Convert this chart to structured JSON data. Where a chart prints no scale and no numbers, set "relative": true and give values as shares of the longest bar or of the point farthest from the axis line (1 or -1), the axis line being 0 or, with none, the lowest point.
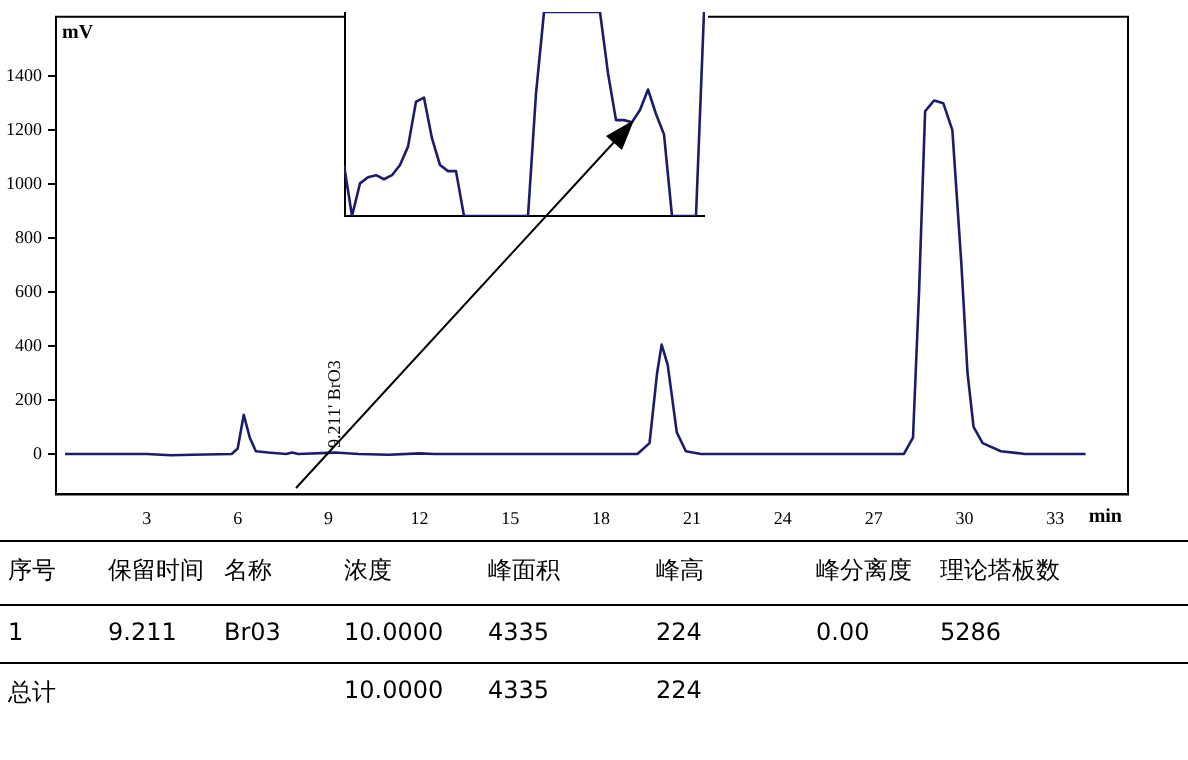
{
  "chart_data": [
    {
      "type": "line",
      "xlabel": "min",
      "ylabel": "mV",
      "xlim": [
        0,
        35.4
      ],
      "xticks": [
        3,
        6,
        9,
        12,
        15,
        18,
        21,
        24,
        27,
        30,
        33
      ],
      "ylim": [
        -150,
        1620
      ],
      "yticks": [
        0,
        200,
        400,
        600,
        800,
        1000,
        1200,
        1400
      ],
      "grid": false,
      "legend": false,
      "marker": "none",
      "x": [
        0.3,
        3,
        3.8,
        4.5,
        5.8,
        6.0,
        6.2,
        6.4,
        6.6,
        7,
        7.6,
        7.8,
        8,
        9.2,
        10,
        11,
        12,
        12.5,
        19.2,
        19.6,
        19.85,
        20.0,
        20.2,
        20.5,
        20.8,
        21.3,
        28.0,
        28.3,
        28.5,
        28.7,
        29.0,
        29.3,
        29.6,
        29.9,
        30.1,
        30.3,
        30.6,
        31.2,
        32,
        34
      ],
      "series": [
        {
          "color": "#1c1c6b",
          "values": [
            0,
            0,
            -5,
            -3,
            0,
            20,
            145,
            60,
            10,
            5,
            0,
            5,
            0,
            5,
            0,
            -3,
            2,
            0,
            0,
            40,
            300,
            405,
            330,
            80,
            10,
            0,
            0,
            60,
            600,
            1270,
            1310,
            1300,
            1200,
            700,
            300,
            100,
            40,
            10,
            0,
            0
          ]
        }
      ],
      "annotations": [
        {
          "text": "9.211' BrO3",
          "x": 9.211,
          "y": 0
        }
      ]
    },
    {
      "type": "line",
      "relative": true,
      "marker": "none",
      "legend": false,
      "categories": [
        null,
        null,
        null,
        null,
        null,
        null,
        null,
        null,
        null,
        null,
        null,
        null,
        null,
        null,
        null,
        null,
        null,
        null,
        null,
        null,
        null,
        null,
        null,
        null,
        null,
        null,
        null,
        null,
        null,
        null,
        null,
        null,
        null,
        null,
        null,
        null,
        null,
        null,
        null,
        null,
        null,
        null,
        null,
        null,
        null,
        null
      ],
      "series": [
        {
          "color": "#1c1c6b",
          "values": [
            0.25,
            0,
            0.16,
            0.19,
            0.2,
            0.18,
            0.2,
            0.25,
            0.34,
            0.56,
            0.58,
            0.38,
            0.25,
            0.22,
            0.22,
            0,
            0,
            0,
            0,
            0,
            0,
            0,
            0,
            0,
            0.6,
            1,
            1,
            1,
            1,
            1,
            1,
            1,
            1,
            0.7,
            0.47,
            0.47,
            0.46,
            0.52,
            0.62,
            0.5,
            0.4,
            0,
            0,
            0,
            0,
            1
          ]
        }
      ]
    },
    {
      "type": "other",
      "categories": [
        "序号",
        "保留时间",
        "名称",
        "浓度",
        "峰面积",
        "峰高",
        "峰分离度",
        "理论塔板数"
      ],
      "annotations": [
        "1",
        "9.211",
        "Br03",
        "10.0000",
        "4335",
        "224",
        "0.00",
        "5286",
        "总计",
        null,
        null,
        "10.0000",
        "4335",
        "224",
        null,
        null
      ]
    }
  ]
}
